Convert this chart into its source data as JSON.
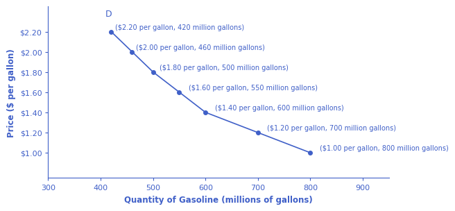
{
  "quantities": [
    420,
    460,
    500,
    550,
    600,
    700,
    800
  ],
  "prices": [
    2.2,
    2.0,
    1.8,
    1.6,
    1.4,
    1.2,
    1.0
  ],
  "annotations": [
    "($2.20 per gallon, 420 million gallons)",
    "($2.00 per gallon, 460 million gallons)",
    "($1.80 per gallon, 500 million gallons)",
    "($1.60 per gallon, 550 million gallons)",
    "($1.40 per gallon, 600 million gallons)",
    "($1.20 per gallon, 700 million gallons)",
    "($1.00 per gallon, 800 million gallons)"
  ],
  "curve_label": "D",
  "xlabel": "Quantity of Gasoline (millions of gallons)",
  "ylabel": "Price ($ per gallon)",
  "xlim": [
    300,
    950
  ],
  "ylim": [
    0.75,
    2.45
  ],
  "xticks": [
    300,
    400,
    500,
    600,
    700,
    800,
    900
  ],
  "yticks": [
    1.0,
    1.2,
    1.4,
    1.6,
    1.8,
    2.0,
    2.2
  ],
  "color": "#4060C8",
  "bg_color": "#FFFFFF",
  "fontsize_xlabel": 8.5,
  "fontsize_ylabel": 8.5,
  "fontsize_ticks": 8,
  "fontsize_annot": 7,
  "fontsize_curve_label": 9,
  "marker_size": 4,
  "line_width": 1.2
}
